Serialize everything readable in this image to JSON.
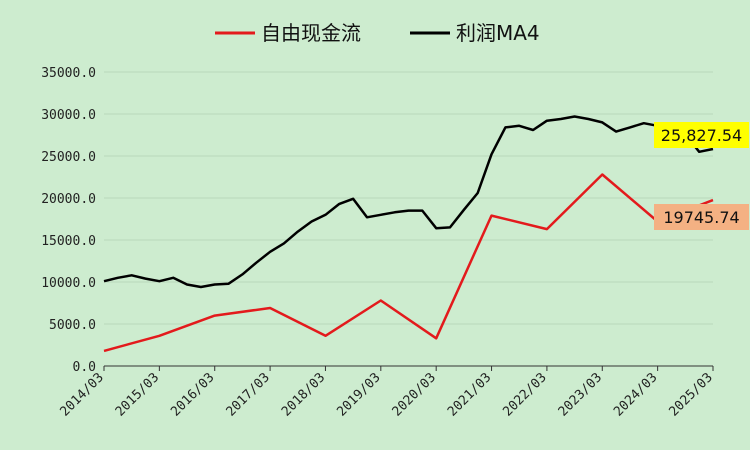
{
  "chart_data": {
    "type": "line",
    "background": "#cdeccf",
    "x_ticks": [
      "2014/03",
      "2015/03",
      "2016/03",
      "2017/03",
      "2018/03",
      "2019/03",
      "2020/03",
      "2021/03",
      "2022/03",
      "2023/03",
      "2024/03",
      "2025/03"
    ],
    "y_ticks": [
      "0.0",
      "5000.0",
      "10000.0",
      "15000.0",
      "20000.0",
      "25000.0",
      "30000.0",
      "35000.0"
    ],
    "ylim": [
      0,
      35000
    ],
    "xlim": [
      2014.0,
      2025.0
    ],
    "legend_position": "top",
    "series": [
      {
        "name": "自由现金流",
        "color": "#e31a1c",
        "points": [
          [
            2014.0,
            1800
          ],
          [
            2015.0,
            3600
          ],
          [
            2016.0,
            6000
          ],
          [
            2017.0,
            6900
          ],
          [
            2018.0,
            3600
          ],
          [
            2019.0,
            7800
          ],
          [
            2020.0,
            3300
          ],
          [
            2021.0,
            17900
          ],
          [
            2022.0,
            16300
          ],
          [
            2023.0,
            22800
          ],
          [
            2024.0,
            17200
          ],
          [
            2025.0,
            19745.74
          ]
        ]
      },
      {
        "name": "利润MA4",
        "color": "#000000",
        "points": [
          [
            2014.0,
            10100
          ],
          [
            2014.25,
            10500
          ],
          [
            2014.5,
            10800
          ],
          [
            2014.75,
            10400
          ],
          [
            2015.0,
            10100
          ],
          [
            2015.25,
            10500
          ],
          [
            2015.5,
            9700
          ],
          [
            2015.75,
            9400
          ],
          [
            2016.0,
            9700
          ],
          [
            2016.25,
            9800
          ],
          [
            2016.5,
            10900
          ],
          [
            2016.75,
            12300
          ],
          [
            2017.0,
            13600
          ],
          [
            2017.25,
            14600
          ],
          [
            2017.5,
            16000
          ],
          [
            2017.75,
            17200
          ],
          [
            2018.0,
            18000
          ],
          [
            2018.25,
            19300
          ],
          [
            2018.5,
            19900
          ],
          [
            2018.75,
            17700
          ],
          [
            2019.0,
            18000
          ],
          [
            2019.25,
            18300
          ],
          [
            2019.5,
            18500
          ],
          [
            2019.75,
            18500
          ],
          [
            2020.0,
            16400
          ],
          [
            2020.25,
            16500
          ],
          [
            2020.5,
            18600
          ],
          [
            2020.75,
            20600
          ],
          [
            2021.0,
            25200
          ],
          [
            2021.25,
            28400
          ],
          [
            2021.5,
            28600
          ],
          [
            2021.75,
            28100
          ],
          [
            2022.0,
            29200
          ],
          [
            2022.25,
            29400
          ],
          [
            2022.5,
            29700
          ],
          [
            2022.75,
            29400
          ],
          [
            2023.0,
            29000
          ],
          [
            2023.25,
            27900
          ],
          [
            2023.5,
            28400
          ],
          [
            2023.75,
            28900
          ],
          [
            2024.0,
            28600
          ],
          [
            2024.25,
            28200
          ],
          [
            2024.5,
            27600
          ],
          [
            2024.75,
            25500
          ],
          [
            2025.0,
            25827.54
          ]
        ]
      }
    ],
    "callouts": [
      {
        "series": 1,
        "label": "25,827.54",
        "bg": "#ffff00"
      },
      {
        "series": 0,
        "label": "19745.74",
        "bg": "#f4b183"
      }
    ]
  }
}
